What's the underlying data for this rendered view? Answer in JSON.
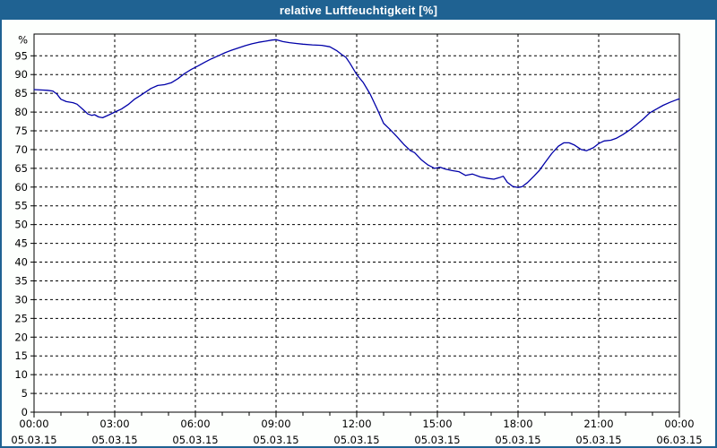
{
  "title": "relative Luftfeuchtigkeit [%]",
  "colors": {
    "titlebar_bg": "#1F6292",
    "titlebar_text": "#FFFFFF",
    "window_bg": "#FDFFFD",
    "plot_bg": "#FFFFFF",
    "border": "#1F6292",
    "grid": "#000000",
    "axis": "#000000",
    "line": "#0000A8"
  },
  "chart_data": {
    "type": "line",
    "title": "relative Luftfeuchtigkeit [%]",
    "ylabel": "%",
    "xlabel": "",
    "ylim": [
      0,
      100.8
    ],
    "yticks": [
      0,
      5,
      10,
      15,
      20,
      25,
      30,
      35,
      40,
      45,
      50,
      55,
      60,
      65,
      70,
      75,
      80,
      85,
      90,
      95
    ],
    "xlim_hours": [
      0,
      24
    ],
    "x_major_ticks_hours": [
      0,
      3,
      6,
      9,
      12,
      15,
      18,
      21,
      24
    ],
    "x_minor_tick_interval_hours": 1,
    "x_tick_labels": [
      {
        "time": "00:00",
        "date": "05.03.15"
      },
      {
        "time": "03:00",
        "date": "05.03.15"
      },
      {
        "time": "06:00",
        "date": "05.03.15"
      },
      {
        "time": "09:00",
        "date": "05.03.15"
      },
      {
        "time": "12:00",
        "date": "05.03.15"
      },
      {
        "time": "15:00",
        "date": "05.03.15"
      },
      {
        "time": "18:00",
        "date": "05.03.15"
      },
      {
        "time": "21:00",
        "date": "05.03.15"
      },
      {
        "time": "00:00",
        "date": "06.03.15"
      }
    ],
    "grid": "dashed",
    "legend_position": "none",
    "series": [
      {
        "name": "relative Luftfeuchtigkeit",
        "unit": "%",
        "points": [
          [
            0,
            86
          ],
          [
            0.25,
            85.9
          ],
          [
            0.5,
            85.8
          ],
          [
            0.7,
            85.6
          ],
          [
            0.85,
            84.8
          ],
          [
            1,
            83.4
          ],
          [
            1.2,
            82.8
          ],
          [
            1.45,
            82.5
          ],
          [
            1.6,
            82.1
          ],
          [
            1.85,
            80.5
          ],
          [
            2,
            79.5
          ],
          [
            2.15,
            79.1
          ],
          [
            2.25,
            79.3
          ],
          [
            2.4,
            78.7
          ],
          [
            2.55,
            78.5
          ],
          [
            2.8,
            79.3
          ],
          [
            3,
            80
          ],
          [
            3.25,
            80.8
          ],
          [
            3.5,
            82
          ],
          [
            3.75,
            83.5
          ],
          [
            3.95,
            84.4
          ],
          [
            4.1,
            85.1
          ],
          [
            4.35,
            86.3
          ],
          [
            4.6,
            87.1
          ],
          [
            4.85,
            87.3
          ],
          [
            5.1,
            87.8
          ],
          [
            5.35,
            88.9
          ],
          [
            5.6,
            90.3
          ],
          [
            5.85,
            91.4
          ],
          [
            6.1,
            92.3
          ],
          [
            6.35,
            93.3
          ],
          [
            6.6,
            94.2
          ],
          [
            6.85,
            95
          ],
          [
            7.1,
            95.8
          ],
          [
            7.35,
            96.5
          ],
          [
            7.6,
            97.1
          ],
          [
            7.85,
            97.7
          ],
          [
            8.1,
            98.2
          ],
          [
            8.35,
            98.6
          ],
          [
            8.6,
            98.9
          ],
          [
            8.85,
            99.2
          ],
          [
            9,
            99.3
          ],
          [
            9.25,
            98.8
          ],
          [
            9.5,
            98.5
          ],
          [
            9.75,
            98.3
          ],
          [
            10,
            98.1
          ],
          [
            10.35,
            97.9
          ],
          [
            10.7,
            97.8
          ],
          [
            11,
            97.4
          ],
          [
            11.25,
            96.4
          ],
          [
            11.45,
            95.3
          ],
          [
            11.6,
            94.6
          ],
          [
            11.75,
            93
          ],
          [
            11.9,
            91.2
          ],
          [
            12,
            90
          ],
          [
            12.25,
            87.8
          ],
          [
            12.5,
            84.8
          ],
          [
            12.75,
            81
          ],
          [
            13,
            77
          ],
          [
            13.25,
            75.3
          ],
          [
            13.5,
            73.4
          ],
          [
            13.75,
            71.4
          ],
          [
            14,
            69.7
          ],
          [
            14.15,
            69.2
          ],
          [
            14.4,
            67.3
          ],
          [
            14.65,
            65.9
          ],
          [
            14.9,
            65
          ],
          [
            15.1,
            65.3
          ],
          [
            15.3,
            64.8
          ],
          [
            15.55,
            64.4
          ],
          [
            15.8,
            64.1
          ],
          [
            16.05,
            63.1
          ],
          [
            16.3,
            63.5
          ],
          [
            16.6,
            62.7
          ],
          [
            16.9,
            62.3
          ],
          [
            17.1,
            62.1
          ],
          [
            17.3,
            62.5
          ],
          [
            17.45,
            62.9
          ],
          [
            17.6,
            61.3
          ],
          [
            17.8,
            60.2
          ],
          [
            18,
            59.9
          ],
          [
            18.15,
            60.1
          ],
          [
            18.35,
            61.2
          ],
          [
            18.6,
            63
          ],
          [
            18.8,
            64.5
          ],
          [
            19,
            66.5
          ],
          [
            19.25,
            68.9
          ],
          [
            19.5,
            70.9
          ],
          [
            19.7,
            71.8
          ],
          [
            19.9,
            71.8
          ],
          [
            20.1,
            71.2
          ],
          [
            20.35,
            70
          ],
          [
            20.55,
            69.7
          ],
          [
            20.8,
            70.5
          ],
          [
            21,
            71.6
          ],
          [
            21.2,
            72.3
          ],
          [
            21.45,
            72.5
          ],
          [
            21.65,
            73
          ],
          [
            21.9,
            74
          ],
          [
            22.15,
            75.2
          ],
          [
            22.4,
            76.6
          ],
          [
            22.65,
            78.1
          ],
          [
            22.9,
            79.8
          ],
          [
            23.15,
            80.8
          ],
          [
            23.4,
            81.8
          ],
          [
            23.65,
            82.6
          ],
          [
            23.9,
            83.3
          ],
          [
            24,
            83.5
          ]
        ]
      }
    ]
  }
}
